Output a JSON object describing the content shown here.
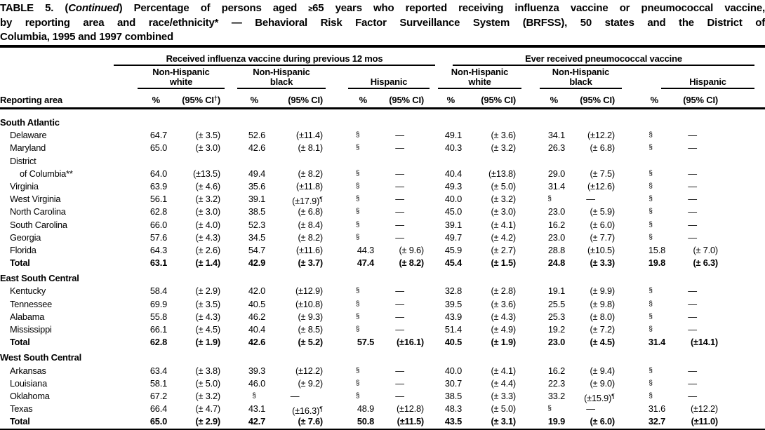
{
  "title": {
    "l1_pre": "TABLE 5. (",
    "l1_italic": "Continued",
    "l1_mid": ") Percentage of persons aged ",
    "l1_geq": "≥",
    "l1_end": "65 years who reported receiving influenza vaccine or pneumococcal vaccine,",
    "line2": "by reporting area and race/ethnicity* — Behavioral Risk Factor Surveillance System (BRFSS), 50 states and the District of",
    "line3": "Columbia, 1995 and 1997 combined"
  },
  "header": {
    "reporting_area": "Reporting area",
    "groups": [
      {
        "label": "Received influenza vaccine during previous 12 mos"
      },
      {
        "label": "Ever received pneumococcal vaccine"
      }
    ],
    "races": [
      {
        "line1": "Non-Hispanic",
        "line2": "white"
      },
      {
        "line1": "Non-Hispanic",
        "line2": "black"
      },
      {
        "line1": "",
        "line2": "Hispanic"
      }
    ],
    "pct_label": "%",
    "ci_pre": "(95% CI",
    "ci_post": ")",
    "ci_first_sup": "†"
  },
  "table": {
    "sections": [
      {
        "name": "South Atlantic",
        "rows": [
          {
            "area": "Delaware",
            "cells": [
              [
                "64.7",
                "(± 3.5)"
              ],
              [
                "52.6",
                "(±11.4)"
              ],
              [
                "§",
                "—"
              ],
              [
                "49.1",
                "(± 3.6)"
              ],
              [
                "34.1",
                "(±12.2)"
              ],
              [
                "§",
                "—"
              ]
            ]
          },
          {
            "area": "Maryland",
            "cells": [
              [
                "65.0",
                "(± 3.0)"
              ],
              [
                "42.6",
                "(± 8.1)"
              ],
              [
                "§",
                "—"
              ],
              [
                "40.3",
                "(± 3.2)"
              ],
              [
                "26.3",
                "(± 6.8)"
              ],
              [
                "§",
                "—"
              ]
            ]
          },
          {
            "area": "District"
          },
          {
            "area": "of Columbia**",
            "indent": 2,
            "cells": [
              [
                "64.0",
                "(±13.5)"
              ],
              [
                "49.4",
                "(± 8.2)"
              ],
              [
                "§",
                "—"
              ],
              [
                "40.4",
                "(±13.8)"
              ],
              [
                "29.0",
                "(± 7.5)"
              ],
              [
                "§",
                "—"
              ]
            ]
          },
          {
            "area": "Virginia",
            "cells": [
              [
                "63.9",
                "(± 4.6)"
              ],
              [
                "35.6",
                "(±11.8)"
              ],
              [
                "§",
                "—"
              ],
              [
                "49.3",
                "(± 5.0)"
              ],
              [
                "31.4",
                "(±12.6)"
              ],
              [
                "§",
                "—"
              ]
            ]
          },
          {
            "area": "West Virginia",
            "cells": [
              [
                "56.1",
                "(± 3.2)"
              ],
              [
                "39.1",
                "(±17.9)",
                "¶"
              ],
              [
                "§",
                "—"
              ],
              [
                "40.0",
                "(± 3.2)"
              ],
              [
                "§",
                "—"
              ],
              [
                "§",
                "—"
              ]
            ]
          },
          {
            "area": "North Carolina",
            "cells": [
              [
                "62.8",
                "(± 3.0)"
              ],
              [
                "38.5",
                "(± 6.8)"
              ],
              [
                "§",
                "—"
              ],
              [
                "45.0",
                "(± 3.0)"
              ],
              [
                "23.0",
                "(± 5.9)"
              ],
              [
                "§",
                "—"
              ]
            ]
          },
          {
            "area": "South Carolina",
            "cells": [
              [
                "66.0",
                "(± 4.0)"
              ],
              [
                "52.3",
                "(± 8.4)"
              ],
              [
                "§",
                "—"
              ],
              [
                "39.1",
                "(± 4.1)"
              ],
              [
                "16.2",
                "(± 6.0)"
              ],
              [
                "§",
                "—"
              ]
            ]
          },
          {
            "area": "Georgia",
            "cells": [
              [
                "57.6",
                "(± 4.3)"
              ],
              [
                "34.5",
                "(± 8.2)"
              ],
              [
                "§",
                "—"
              ],
              [
                "49.7",
                "(± 4.2)"
              ],
              [
                "23.0",
                "(± 7.7)"
              ],
              [
                "§",
                "—"
              ]
            ]
          },
          {
            "area": "Florida",
            "cells": [
              [
                "64.3",
                "(± 2.6)"
              ],
              [
                "54.7",
                "(±11.6)"
              ],
              [
                "44.3",
                "(± 9.6)"
              ],
              [
                "45.9",
                "(± 2.7)"
              ],
              [
                "28.8",
                "(±10.5)"
              ],
              [
                "15.8",
                "(± 7.0)"
              ]
            ]
          },
          {
            "area": "Total",
            "bold": true,
            "cells": [
              [
                "63.1",
                "(± 1.4)"
              ],
              [
                "42.9",
                "(± 3.7)"
              ],
              [
                "47.4",
                "(± 8.2)"
              ],
              [
                "45.4",
                "(± 1.5)"
              ],
              [
                "24.8",
                "(± 3.3)"
              ],
              [
                "19.8",
                "(± 6.3)"
              ]
            ]
          }
        ]
      },
      {
        "name": "East South Central",
        "rows": [
          {
            "area": "Kentucky",
            "cells": [
              [
                "58.4",
                "(± 2.9)"
              ],
              [
                "42.0",
                "(±12.9)"
              ],
              [
                "§",
                "—"
              ],
              [
                "32.8",
                "(± 2.8)"
              ],
              [
                "19.1",
                "(± 9.9)"
              ],
              [
                "§",
                "—"
              ]
            ]
          },
          {
            "area": "Tennessee",
            "cells": [
              [
                "69.9",
                "(± 3.5)"
              ],
              [
                "40.5",
                "(±10.8)"
              ],
              [
                "§",
                "—"
              ],
              [
                "39.5",
                "(± 3.6)"
              ],
              [
                "25.5",
                "(± 9.8)"
              ],
              [
                "§",
                "—"
              ]
            ]
          },
          {
            "area": "Alabama",
            "cells": [
              [
                "55.8",
                "(± 4.3)"
              ],
              [
                "46.2",
                "(± 9.3)"
              ],
              [
                "§",
                "—"
              ],
              [
                "43.9",
                "(± 4.3)"
              ],
              [
                "25.3",
                "(± 8.0)"
              ],
              [
                "§",
                "—"
              ]
            ]
          },
          {
            "area": "Mississippi",
            "cells": [
              [
                "66.1",
                "(± 4.5)"
              ],
              [
                "40.4",
                "(± 8.5)"
              ],
              [
                "§",
                "—"
              ],
              [
                "51.4",
                "(± 4.9)"
              ],
              [
                "19.2",
                "(± 7.2)"
              ],
              [
                "§",
                "—"
              ]
            ]
          },
          {
            "area": "Total",
            "bold": true,
            "cells": [
              [
                "62.8",
                "(± 1.9)"
              ],
              [
                "42.6",
                "(± 5.2)"
              ],
              [
                "57.5",
                "(±16.1)"
              ],
              [
                "40.5",
                "(± 1.9)"
              ],
              [
                "23.0",
                "(± 4.5)"
              ],
              [
                "31.4",
                "(±14.1)"
              ]
            ]
          }
        ]
      },
      {
        "name": "West South Central",
        "rows": [
          {
            "area": "Arkansas",
            "cells": [
              [
                "63.4",
                "(± 3.8)"
              ],
              [
                "39.3",
                "(±12.2)"
              ],
              [
                "§",
                "—"
              ],
              [
                "40.0",
                "(± 4.1)"
              ],
              [
                "16.2",
                "(± 9.4)"
              ],
              [
                "§",
                "—"
              ]
            ]
          },
          {
            "area": "Louisiana",
            "cells": [
              [
                "58.1",
                "(± 5.0)"
              ],
              [
                "46.0",
                "(± 9.2)"
              ],
              [
                "§",
                "—"
              ],
              [
                "30.7",
                "(± 4.4)"
              ],
              [
                "22.3",
                "(± 9.0)"
              ],
              [
                "§",
                "—"
              ]
            ]
          },
          {
            "area": "Oklahoma",
            "cells": [
              [
                "67.2",
                "(± 3.2)"
              ],
              [
                "§",
                "—"
              ],
              [
                "§",
                "—"
              ],
              [
                "38.5",
                "(± 3.3)"
              ],
              [
                "33.2",
                "(±15.9)",
                "¶"
              ],
              [
                "§",
                "—"
              ]
            ]
          },
          {
            "area": "Texas",
            "cells": [
              [
                "66.4",
                "(± 4.7)"
              ],
              [
                "43.1",
                "(±16.3)",
                "¶"
              ],
              [
                "48.9",
                "(±12.8)"
              ],
              [
                "48.3",
                "(± 5.0)"
              ],
              [
                "§",
                "—"
              ],
              [
                "31.6",
                "(±12.2)"
              ]
            ]
          },
          {
            "area": "Total",
            "bold": true,
            "cells": [
              [
                "65.0",
                "(± 2.9)"
              ],
              [
                "42.7",
                "(± 7.6)"
              ],
              [
                "50.8",
                "(±11.5)"
              ],
              [
                "43.5",
                "(± 3.1)"
              ],
              [
                "19.9",
                "(± 6.0)"
              ],
              [
                "32.7",
                "(±11.0)"
              ]
            ]
          }
        ]
      }
    ]
  }
}
